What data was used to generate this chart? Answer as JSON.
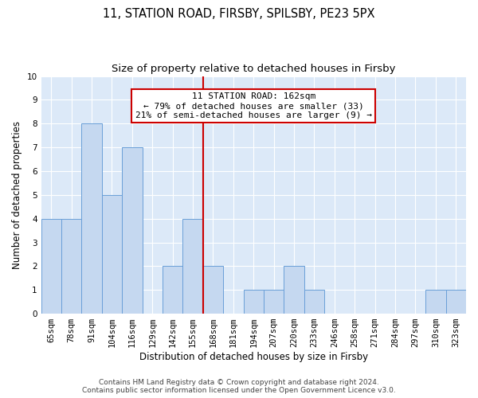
{
  "title": "11, STATION ROAD, FIRSBY, SPILSBY, PE23 5PX",
  "subtitle": "Size of property relative to detached houses in Firsby",
  "xlabel": "Distribution of detached houses by size in Firsby",
  "ylabel": "Number of detached properties",
  "categories": [
    "65sqm",
    "78sqm",
    "91sqm",
    "104sqm",
    "116sqm",
    "129sqm",
    "142sqm",
    "155sqm",
    "168sqm",
    "181sqm",
    "194sqm",
    "207sqm",
    "220sqm",
    "233sqm",
    "246sqm",
    "258sqm",
    "271sqm",
    "284sqm",
    "297sqm",
    "310sqm",
    "323sqm"
  ],
  "values": [
    4,
    4,
    8,
    5,
    7,
    0,
    2,
    4,
    2,
    0,
    1,
    1,
    2,
    1,
    0,
    0,
    0,
    0,
    0,
    1,
    1
  ],
  "bar_color": "#c5d8f0",
  "bar_edge_color": "#6a9fd8",
  "vline_color": "#cc0000",
  "annotation_text": "11 STATION ROAD: 162sqm\n← 79% of detached houses are smaller (33)\n21% of semi-detached houses are larger (9) →",
  "annotation_box_color": "#ffffff",
  "annotation_box_edge_color": "#cc0000",
  "ylim": [
    0,
    10
  ],
  "yticks": [
    0,
    1,
    2,
    3,
    4,
    5,
    6,
    7,
    8,
    9,
    10
  ],
  "footer_line1": "Contains HM Land Registry data © Crown copyright and database right 2024.",
  "footer_line2": "Contains public sector information licensed under the Open Government Licence v3.0.",
  "fig_background_color": "#ffffff",
  "plot_bg_color": "#dce9f8",
  "grid_color": "#ffffff",
  "title_fontsize": 10.5,
  "subtitle_fontsize": 9.5,
  "axis_label_fontsize": 8.5,
  "tick_fontsize": 7.5,
  "annotation_fontsize": 8,
  "footer_fontsize": 6.5,
  "vline_pos": 7.5
}
